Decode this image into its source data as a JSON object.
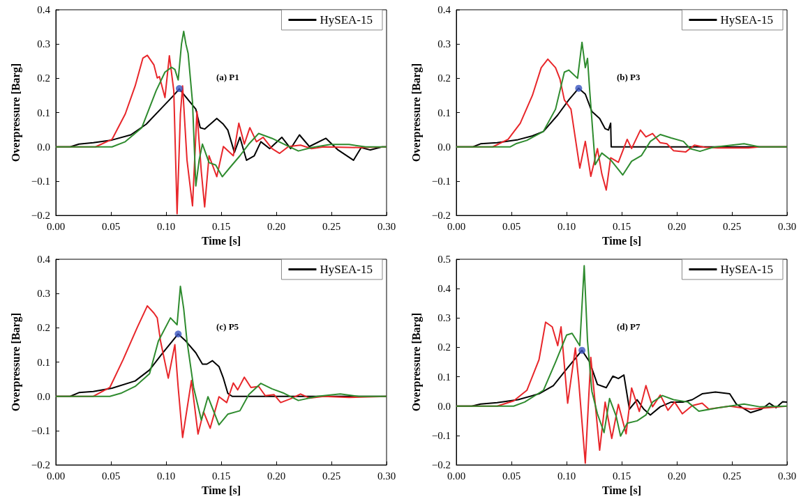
{
  "chart_data": [
    {
      "type": "line",
      "annotations": [
        "(a) P1"
      ],
      "xlabel": "Time [s]",
      "ylabel": "Overpressure [Barg]",
      "legend": "top right",
      "grid": false,
      "xlim": [
        0,
        0.3
      ],
      "xticks": [
        {
          "value": 0,
          "label": "0.00"
        },
        {
          "value": 0.05,
          "label": "0.05"
        },
        {
          "value": 0.1,
          "label": "0.10"
        },
        {
          "value": 0.15,
          "label": "0.15"
        },
        {
          "value": 0.2,
          "label": "0.20"
        },
        {
          "value": 0.25,
          "label": "0.25"
        },
        {
          "value": 0.3,
          "label": "0.30"
        }
      ],
      "ylim": [
        -0.2,
        0.4
      ],
      "yticks": [
        {
          "value": -0.2,
          "label": "−0.2"
        },
        {
          "value": -0.1,
          "label": "−0.1"
        },
        {
          "value": 0,
          "label": "0.0"
        },
        {
          "value": 0.1,
          "label": "0.1"
        },
        {
          "value": 0.2,
          "label": "0.2"
        },
        {
          "value": 0.3,
          "label": "0.3"
        },
        {
          "value": 0.4,
          "label": "0.4"
        }
      ],
      "series": [
        {
          "name": "HySEA-15",
          "color": "#000000",
          "x": [
            0,
            0.013,
            0.021,
            0.034,
            0.051,
            0.068,
            0.082,
            0.095,
            0.106,
            0.112,
            0.127,
            0.131,
            0.135,
            0.146,
            0.152,
            0.156,
            0.162,
            0.167,
            0.173,
            0.18,
            0.186,
            0.194,
            0.205,
            0.213,
            0.221,
            0.23,
            0.245,
            0.256,
            0.27,
            0.277,
            0.285,
            0.296,
            0.3
          ],
          "values": [
            0,
            0,
            0.008,
            0.012,
            0.02,
            0.035,
            0.066,
            0.11,
            0.147,
            0.169,
            0.11,
            0.056,
            0.052,
            0.083,
            0.066,
            0.049,
            -0.016,
            0.028,
            -0.039,
            -0.026,
            0.015,
            -0.005,
            0.028,
            -0.005,
            0.035,
            0.001,
            0.025,
            -0.009,
            -0.039,
            -0.002,
            -0.009,
            0,
            0
          ]
        },
        {
          "color": "#e8262a",
          "x": [
            0,
            0.036,
            0.051,
            0.063,
            0.072,
            0.079,
            0.083,
            0.089,
            0.092,
            0.094,
            0.099,
            0.103,
            0.107,
            0.11,
            0.113,
            0.115,
            0.119,
            0.124,
            0.128,
            0.132,
            0.135,
            0.139,
            0.146,
            0.152,
            0.161,
            0.166,
            0.171,
            0.176,
            0.182,
            0.188,
            0.196,
            0.203,
            0.211,
            0.222,
            0.232,
            0.243,
            0.275,
            0.3
          ],
          "values": [
            0,
            0,
            0.022,
            0.096,
            0.178,
            0.259,
            0.267,
            0.239,
            0.201,
            0.205,
            0.144,
            0.266,
            0.164,
            -0.195,
            0.096,
            0.178,
            -0.039,
            -0.172,
            0.103,
            -0.073,
            -0.175,
            -0.026,
            -0.087,
            0.001,
            -0.026,
            0.069,
            0.008,
            0.056,
            0.015,
            0.028,
            -0.005,
            -0.019,
            0.001,
            0.005,
            -0.005,
            0,
            -0.002,
            0
          ]
        },
        {
          "color": "#2e8b2e",
          "x": [
            0,
            0.051,
            0.063,
            0.078,
            0.091,
            0.099,
            0.105,
            0.108,
            0.111,
            0.114,
            0.116,
            0.118,
            0.12,
            0.124,
            0.127,
            0.13,
            0.133,
            0.139,
            0.145,
            0.151,
            0.158,
            0.167,
            0.175,
            0.184,
            0.196,
            0.207,
            0.22,
            0.232,
            0.249,
            0.266,
            0.281,
            0.3
          ],
          "values": [
            0,
            0,
            0.015,
            0.056,
            0.164,
            0.218,
            0.232,
            0.226,
            0.195,
            0.3,
            0.337,
            0.3,
            0.273,
            0.13,
            -0.114,
            -0.039,
            0.008,
            -0.046,
            -0.053,
            -0.087,
            -0.06,
            -0.026,
            0.008,
            0.039,
            0.025,
            0.008,
            -0.012,
            -0.002,
            0.007,
            0.007,
            0,
            0
          ]
        },
        {
          "type": "scatter",
          "color": "#3a55c0",
          "x": [
            0.112
          ],
          "values": [
            0.17
          ]
        }
      ]
    },
    {
      "type": "line",
      "annotations": [
        "(b) P3"
      ],
      "xlabel": "Time [s]",
      "ylabel": "Overpressure [Barg]",
      "legend": "top right",
      "grid": false,
      "xlim": [
        0,
        0.3
      ],
      "xticks": [
        {
          "value": 0,
          "label": "0.00"
        },
        {
          "value": 0.05,
          "label": "0.05"
        },
        {
          "value": 0.1,
          "label": "0.10"
        },
        {
          "value": 0.15,
          "label": "0.15"
        },
        {
          "value": 0.2,
          "label": "0.20"
        },
        {
          "value": 0.25,
          "label": "0.25"
        },
        {
          "value": 0.3,
          "label": "0.30"
        }
      ],
      "ylim": [
        -0.2,
        0.4
      ],
      "yticks": [
        {
          "value": -0.2,
          "label": "−0.2"
        },
        {
          "value": -0.1,
          "label": "−0.1"
        },
        {
          "value": 0,
          "label": "0.0"
        },
        {
          "value": 0.1,
          "label": "0.1"
        },
        {
          "value": 0.2,
          "label": "0.2"
        },
        {
          "value": 0.3,
          "label": "0.3"
        },
        {
          "value": 0.4,
          "label": "0.4"
        }
      ],
      "series": [
        {
          "name": "HySEA-15",
          "color": "#000000",
          "x": [
            0,
            0.015,
            0.022,
            0.037,
            0.056,
            0.069,
            0.079,
            0.092,
            0.102,
            0.111,
            0.117,
            0.123,
            0.13,
            0.135,
            0.138,
            0.14,
            0.1405,
            0.3
          ],
          "values": [
            0,
            0,
            0.009,
            0.012,
            0.021,
            0.032,
            0.045,
            0.093,
            0.137,
            0.171,
            0.154,
            0.103,
            0.083,
            0.053,
            0.049,
            0.069,
            0,
            0
          ]
        },
        {
          "color": "#e8262a",
          "x": [
            0,
            0.033,
            0.047,
            0.058,
            0.069,
            0.077,
            0.083,
            0.09,
            0.094,
            0.098,
            0.104,
            0.112,
            0.117,
            0.122,
            0.128,
            0.132,
            0.136,
            0.14,
            0.147,
            0.155,
            0.159,
            0.167,
            0.172,
            0.178,
            0.185,
            0.191,
            0.197,
            0.208,
            0.216,
            0.225,
            0.237,
            0.265,
            0.275,
            0.3
          ],
          "values": [
            0,
            0,
            0.022,
            0.069,
            0.15,
            0.231,
            0.256,
            0.231,
            0.198,
            0.137,
            0.11,
            -0.062,
            0.016,
            -0.086,
            -0.005,
            -0.079,
            -0.126,
            -0.032,
            -0.045,
            0.022,
            -0.005,
            0.049,
            0.029,
            0.039,
            0.012,
            0.009,
            -0.011,
            -0.015,
            0.005,
            -0.001,
            -0.003,
            -0.003,
            0,
            0
          ]
        },
        {
          "color": "#2e8b2e",
          "x": [
            0,
            0.049,
            0.054,
            0.064,
            0.079,
            0.09,
            0.098,
            0.102,
            0.11,
            0.114,
            0.117,
            0.119,
            0.121,
            0.126,
            0.132,
            0.14,
            0.151,
            0.159,
            0.168,
            0.176,
            0.185,
            0.195,
            0.206,
            0.212,
            0.221,
            0.233,
            0.261,
            0.275,
            0.3
          ],
          "values": [
            0,
            0,
            0.009,
            0.019,
            0.045,
            0.11,
            0.218,
            0.224,
            0.2,
            0.305,
            0.231,
            0.258,
            0.164,
            -0.052,
            -0.018,
            -0.038,
            -0.082,
            -0.042,
            -0.025,
            0.016,
            0.036,
            0.026,
            0.016,
            -0.005,
            -0.013,
            -0.001,
            0.009,
            0,
            0
          ]
        },
        {
          "type": "scatter",
          "color": "#3a55c0",
          "x": [
            0.111
          ],
          "values": [
            0.171
          ]
        }
      ]
    },
    {
      "type": "line",
      "annotations": [
        "(c) P5"
      ],
      "xlabel": "Time [s]",
      "ylabel": "Overpressure [Barg]",
      "legend": "top right",
      "grid": false,
      "xlim": [
        0,
        0.3
      ],
      "xticks": [
        {
          "value": 0,
          "label": "0.00"
        },
        {
          "value": 0.05,
          "label": "0.05"
        },
        {
          "value": 0.1,
          "label": "0.10"
        },
        {
          "value": 0.15,
          "label": "0.15"
        },
        {
          "value": 0.2,
          "label": "0.20"
        },
        {
          "value": 0.25,
          "label": "0.25"
        },
        {
          "value": 0.3,
          "label": "0.30"
        }
      ],
      "ylim": [
        -0.2,
        0.4
      ],
      "yticks": [
        {
          "value": -0.2,
          "label": "−0.2"
        },
        {
          "value": -0.1,
          "label": "−0.1"
        },
        {
          "value": 0,
          "label": "0.0"
        },
        {
          "value": 0.1,
          "label": "0.1"
        },
        {
          "value": 0.2,
          "label": "0.2"
        },
        {
          "value": 0.3,
          "label": "0.3"
        },
        {
          "value": 0.4,
          "label": "0.4"
        }
      ],
      "series": [
        {
          "name": "HySEA-15",
          "color": "#000000",
          "x": [
            0,
            0.013,
            0.021,
            0.034,
            0.051,
            0.072,
            0.085,
            0.097,
            0.111,
            0.118,
            0.127,
            0.133,
            0.137,
            0.142,
            0.148,
            0.152,
            0.156,
            0.16,
            0.3
          ],
          "values": [
            0,
            0,
            0.011,
            0.014,
            0.024,
            0.045,
            0.077,
            0.127,
            0.182,
            0.161,
            0.127,
            0.094,
            0.094,
            0.104,
            0.087,
            0.053,
            0.009,
            0,
            0
          ]
        },
        {
          "color": "#e8262a",
          "x": [
            0,
            0.034,
            0.049,
            0.061,
            0.074,
            0.083,
            0.089,
            0.092,
            0.095,
            0.102,
            0.108,
            0.111,
            0.115,
            0.123,
            0.129,
            0.134,
            0.14,
            0.148,
            0.155,
            0.161,
            0.165,
            0.171,
            0.177,
            0.184,
            0.19,
            0.198,
            0.204,
            0.213,
            0.222,
            0.23,
            0.243,
            0.266,
            0.3
          ],
          "values": [
            0,
            0,
            0.026,
            0.107,
            0.202,
            0.264,
            0.243,
            0.229,
            0.161,
            0.053,
            0.151,
            0.026,
            -0.12,
            0.046,
            -0.11,
            -0.045,
            -0.093,
            -0.001,
            -0.018,
            0.039,
            0.019,
            0.056,
            0.026,
            0.029,
            0.002,
            0.005,
            -0.018,
            -0.007,
            0.007,
            -0.005,
            0,
            -0.003,
            0
          ]
        },
        {
          "color": "#2e8b2e",
          "x": [
            0,
            0.049,
            0.059,
            0.072,
            0.085,
            0.093,
            0.104,
            0.11,
            0.113,
            0.116,
            0.119,
            0.125,
            0.132,
            0.138,
            0.148,
            0.156,
            0.167,
            0.175,
            0.186,
            0.196,
            0.207,
            0.22,
            0.237,
            0.258,
            0.275,
            0.3
          ],
          "values": [
            0,
            0,
            0.009,
            0.029,
            0.066,
            0.161,
            0.229,
            0.209,
            0.321,
            0.256,
            0.161,
            0.026,
            -0.069,
            -0.001,
            -0.083,
            -0.052,
            -0.042,
            0.005,
            0.038,
            0.022,
            0.009,
            -0.012,
            0,
            0.007,
            0,
            0
          ]
        },
        {
          "type": "scatter",
          "color": "#3a55c0",
          "x": [
            0.111
          ],
          "values": [
            0.182
          ]
        }
      ]
    },
    {
      "type": "line",
      "annotations": [
        "(d) P7"
      ],
      "xlabel": "Time [s]",
      "ylabel": "Overpressure [Barg]",
      "legend": "top right",
      "grid": false,
      "xlim": [
        0,
        0.3
      ],
      "xticks": [
        {
          "value": 0,
          "label": "0.00"
        },
        {
          "value": 0.05,
          "label": "0.05"
        },
        {
          "value": 0.1,
          "label": "0.10"
        },
        {
          "value": 0.15,
          "label": "0.15"
        },
        {
          "value": 0.2,
          "label": "0.20"
        },
        {
          "value": 0.25,
          "label": "0.25"
        },
        {
          "value": 0.3,
          "label": "0.30"
        }
      ],
      "ylim": [
        -0.2,
        0.5
      ],
      "yticks": [
        {
          "value": -0.2,
          "label": "−0.2"
        },
        {
          "value": -0.1,
          "label": "−0.1"
        },
        {
          "value": 0,
          "label": "0.0"
        },
        {
          "value": 0.1,
          "label": "0.1"
        },
        {
          "value": 0.2,
          "label": "0.2"
        },
        {
          "value": 0.3,
          "label": "0.3"
        },
        {
          "value": 0.4,
          "label": "0.4"
        },
        {
          "value": 0.5,
          "label": "0.5"
        }
      ],
      "series": [
        {
          "name": "HySEA-15",
          "color": "#000000",
          "x": [
            0,
            0.014,
            0.022,
            0.037,
            0.056,
            0.075,
            0.088,
            0.1,
            0.114,
            0.121,
            0.128,
            0.136,
            0.142,
            0.147,
            0.152,
            0.157,
            0.164,
            0.17,
            0.176,
            0.185,
            0.195,
            0.206,
            0.214,
            0.223,
            0.235,
            0.248,
            0.254,
            0.267,
            0.277,
            0.284,
            0.29,
            0.296,
            0.3
          ],
          "values": [
            0,
            0,
            0.007,
            0.012,
            0.022,
            0.042,
            0.07,
            0.126,
            0.19,
            0.15,
            0.074,
            0.063,
            0.102,
            0.094,
            0.106,
            -0.01,
            0.022,
            -0.01,
            -0.03,
            -0.002,
            0.014,
            0.014,
            0.022,
            0.042,
            0.048,
            0.042,
            0.007,
            -0.022,
            -0.01,
            0.01,
            -0.005,
            0.015,
            0.014
          ]
        },
        {
          "color": "#e8262a",
          "x": [
            0,
            0.037,
            0.052,
            0.064,
            0.075,
            0.081,
            0.087,
            0.092,
            0.095,
            0.101,
            0.108,
            0.111,
            0.117,
            0.122,
            0.13,
            0.135,
            0.141,
            0.147,
            0.154,
            0.159,
            0.166,
            0.172,
            0.178,
            0.185,
            0.192,
            0.198,
            0.205,
            0.214,
            0.223,
            0.229,
            0.248,
            0.267,
            0.3
          ],
          "values": [
            0,
            0,
            0.018,
            0.054,
            0.158,
            0.286,
            0.27,
            0.206,
            0.27,
            0.01,
            0.198,
            0.086,
            -0.194,
            0.166,
            -0.15,
            0.014,
            -0.11,
            0.006,
            -0.094,
            0.062,
            -0.018,
            0.07,
            -0.002,
            0.038,
            -0.014,
            0.014,
            -0.026,
            0.002,
            0.01,
            -0.01,
            0,
            -0.01,
            0
          ]
        },
        {
          "color": "#2e8b2e",
          "x": [
            0,
            0.052,
            0.062,
            0.079,
            0.09,
            0.1,
            0.105,
            0.112,
            0.116,
            0.119,
            0.123,
            0.128,
            0.134,
            0.139,
            0.145,
            0.149,
            0.155,
            0.164,
            0.172,
            0.178,
            0.187,
            0.197,
            0.21,
            0.22,
            0.237,
            0.261,
            0.275,
            0.3
          ],
          "values": [
            0,
            0,
            0.014,
            0.054,
            0.15,
            0.242,
            0.248,
            0.206,
            0.478,
            0.222,
            0.05,
            -0.026,
            -0.09,
            0.026,
            -0.034,
            -0.102,
            -0.058,
            -0.05,
            -0.03,
            0.014,
            0.036,
            0.022,
            0.014,
            -0.017,
            -0.006,
            0.007,
            -0.002,
            0
          ]
        },
        {
          "type": "scatter",
          "color": "#3a55c0",
          "x": [
            0.114
          ],
          "values": [
            0.19
          ]
        }
      ]
    }
  ]
}
